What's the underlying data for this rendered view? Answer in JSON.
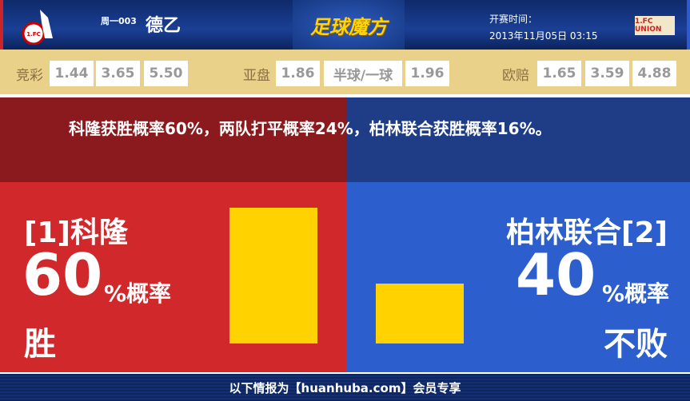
{
  "header": {
    "match_no": "周一003",
    "league": "德乙",
    "brand": "足球魔方",
    "kickoff_label": "开赛时间：",
    "kickoff_time": "2013年11月05日 03:15",
    "home_logo": "1. FC Köln",
    "away_logo": "1.FC UNION"
  },
  "odds": {
    "jingcai": {
      "label": "竞彩",
      "values": [
        "1.44",
        "3.65",
        "5.50"
      ]
    },
    "yapan": {
      "label": "亚盘",
      "values": [
        "1.86",
        "半球/一球",
        "1.96"
      ]
    },
    "oupei": {
      "label": "欧赔",
      "values": [
        "1.65",
        "3.59",
        "4.88"
      ]
    }
  },
  "summary": "科隆获胜概率60%，两队打平概率24%，柏林联合获胜概率16%。",
  "home": {
    "name": "[1]科隆",
    "percent": "60",
    "unit": "%概率",
    "outcome": "胜",
    "bar_value": 60
  },
  "away": {
    "name": "柏林联合[2]",
    "percent": "40",
    "unit": "%概率",
    "outcome": "不败",
    "bar_value": 40
  },
  "colors": {
    "home": "#d1282b",
    "away": "#2c5fcd",
    "bar": "#ffd200"
  },
  "footer": "以下情报为【huanhuba.com】会员专享"
}
